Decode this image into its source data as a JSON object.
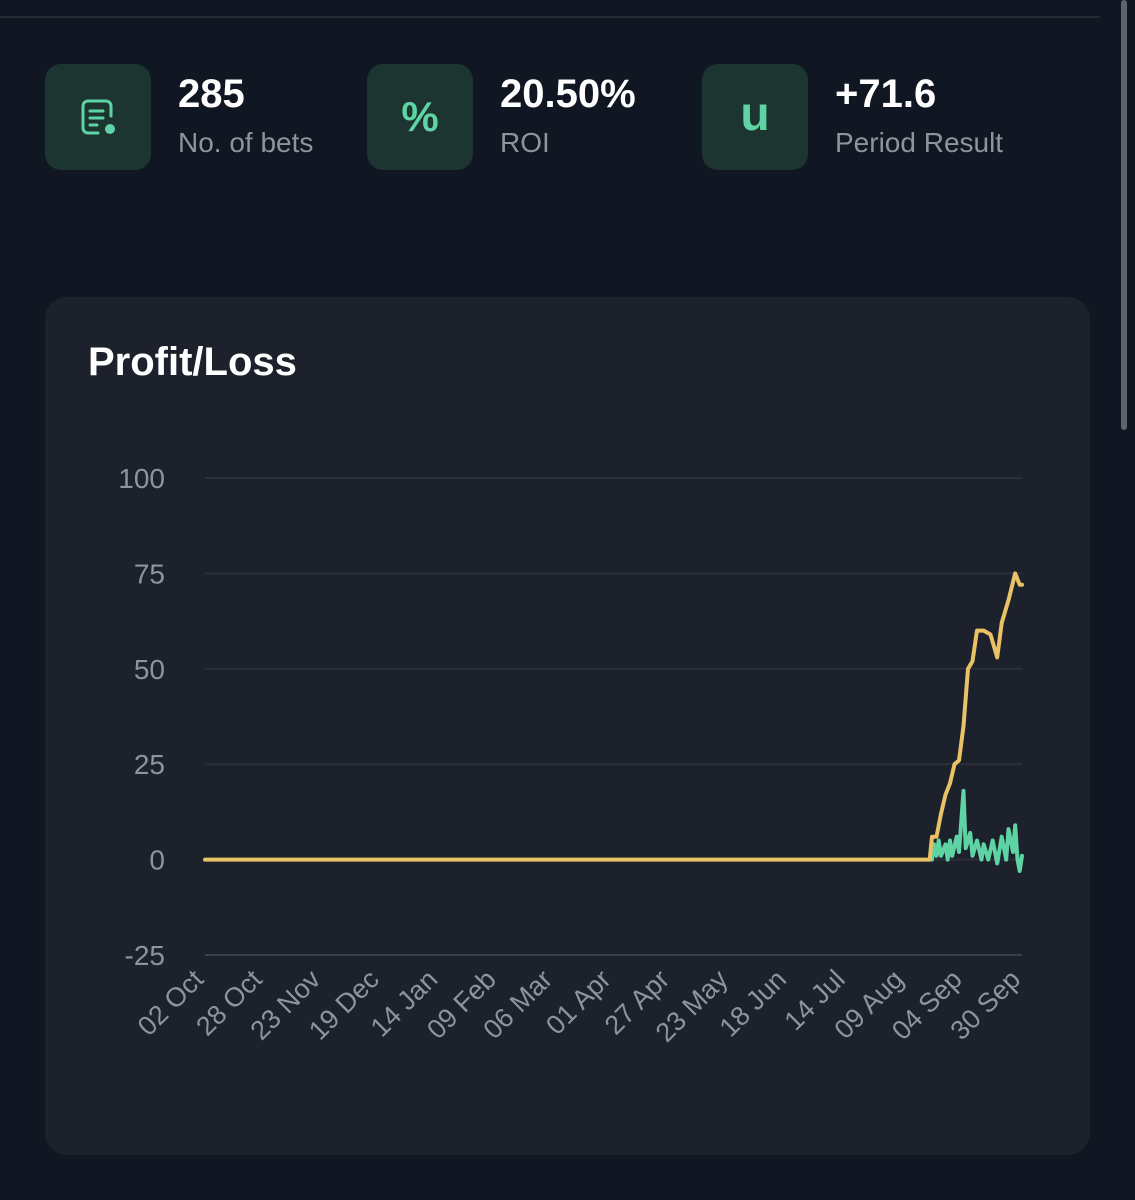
{
  "stats": [
    {
      "value": "285",
      "label": "No. of bets",
      "icon": "bet-slip-icon"
    },
    {
      "value": "20.50%",
      "label": "ROI",
      "icon": "percent-icon",
      "glyph": "%"
    },
    {
      "value": "+71.6",
      "label": "Period Result",
      "icon": "units-icon",
      "glyph": "u"
    }
  ],
  "colors": {
    "background": "#111623",
    "card": "#1c212b",
    "accent_green": "#5ed3a3",
    "series_yellow": "#e8c265",
    "icon_bg": "#1c3531"
  },
  "chart_data": {
    "type": "line",
    "title": "Profit/Loss",
    "xlabel": "",
    "ylabel": "",
    "ylim": [
      -25,
      100
    ],
    "yticks": [
      100,
      75,
      50,
      25,
      0,
      -25
    ],
    "xticks": [
      "02 Oct",
      "28 Oct",
      "23 Nov",
      "19 Dec",
      "14 Jan",
      "09 Feb",
      "06 Mar",
      "01 Apr",
      "27 Apr",
      "23 May",
      "18 Jun",
      "14 Jul",
      "09 Aug",
      "04 Sep",
      "30 Sep"
    ],
    "grid": true,
    "series": [
      {
        "color": "#e8c265",
        "points": [
          [
            "02 Oct",
            0
          ],
          [
            "09 Aug",
            0
          ],
          [
            "20 Aug",
            0
          ],
          [
            "21 Aug",
            6
          ],
          [
            "23 Aug",
            6
          ],
          [
            "25 Aug",
            12
          ],
          [
            "27 Aug",
            17
          ],
          [
            "29 Aug",
            20
          ],
          [
            "31 Aug",
            25
          ],
          [
            "02 Sep",
            26
          ],
          [
            "04 Sep",
            35
          ],
          [
            "06 Sep",
            50
          ],
          [
            "08 Sep",
            52
          ],
          [
            "10 Sep",
            60
          ],
          [
            "13 Sep",
            60
          ],
          [
            "16 Sep",
            59
          ],
          [
            "19 Sep",
            53
          ],
          [
            "21 Sep",
            62
          ],
          [
            "24 Sep",
            68
          ],
          [
            "27 Sep",
            75
          ],
          [
            "29 Sep",
            72
          ],
          [
            "30 Sep",
            72
          ]
        ]
      },
      {
        "color": "#5ed3a3",
        "points": [
          [
            "21 Aug",
            0
          ],
          [
            "22 Aug",
            4
          ],
          [
            "23 Aug",
            1
          ],
          [
            "24 Aug",
            5
          ],
          [
            "25 Aug",
            1
          ],
          [
            "27 Aug",
            4
          ],
          [
            "28 Aug",
            0
          ],
          [
            "29 Aug",
            5
          ],
          [
            "30 Aug",
            1
          ],
          [
            "01 Sep",
            6
          ],
          [
            "02 Sep",
            2
          ],
          [
            "04 Sep",
            18
          ],
          [
            "05 Sep",
            3
          ],
          [
            "07 Sep",
            7
          ],
          [
            "08 Sep",
            1
          ],
          [
            "10 Sep",
            5
          ],
          [
            "12 Sep",
            0
          ],
          [
            "13 Sep",
            4
          ],
          [
            "15 Sep",
            0
          ],
          [
            "17 Sep",
            5
          ],
          [
            "19 Sep",
            -1
          ],
          [
            "21 Sep",
            6
          ],
          [
            "23 Sep",
            0
          ],
          [
            "24 Sep",
            8
          ],
          [
            "26 Sep",
            2
          ],
          [
            "27 Sep",
            9
          ],
          [
            "28 Sep",
            0
          ],
          [
            "29 Sep",
            -3
          ],
          [
            "30 Sep",
            1
          ]
        ]
      }
    ]
  }
}
